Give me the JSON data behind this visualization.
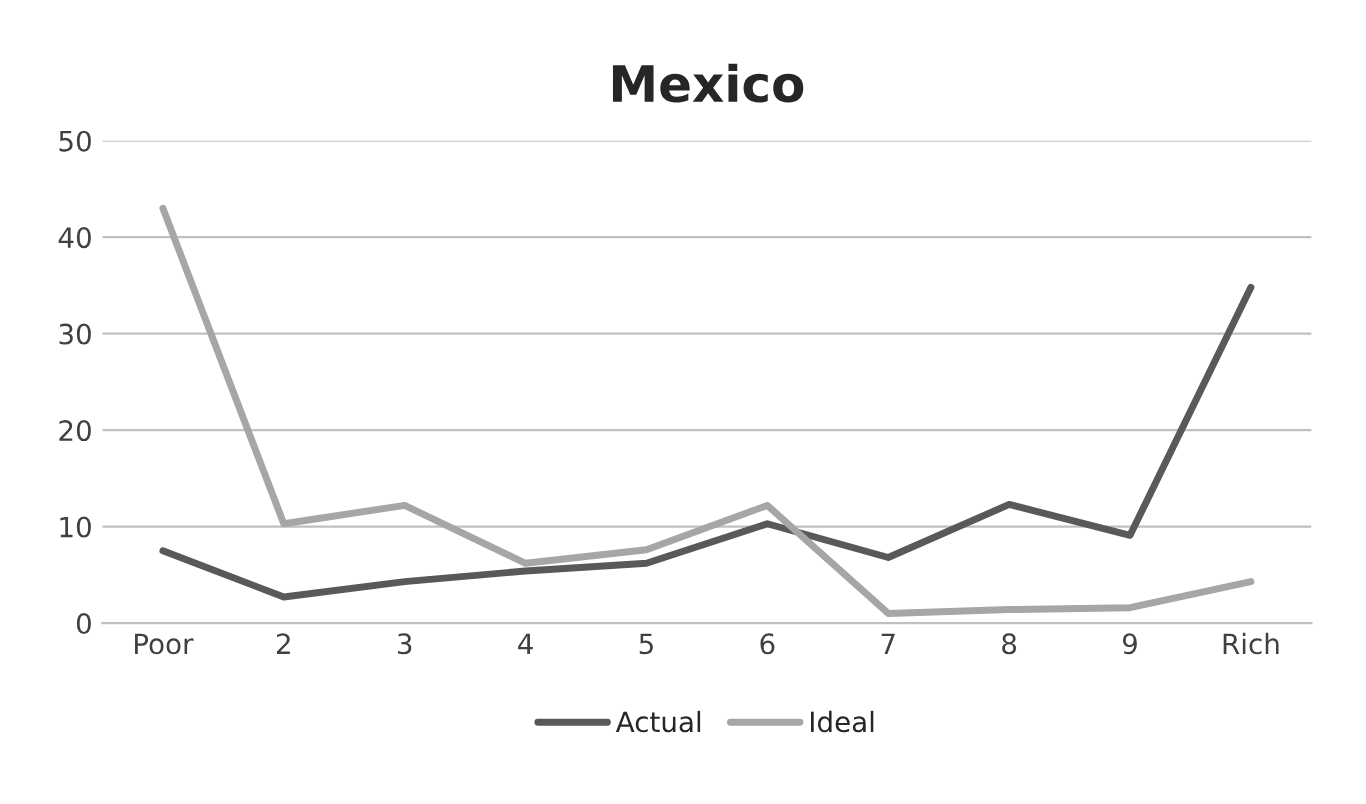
{
  "chart_data": {
    "type": "line",
    "title": "Mexico",
    "categories": [
      "Poor",
      "2",
      "3",
      "4",
      "5",
      "6",
      "7",
      "8",
      "9",
      "Rich"
    ],
    "series": [
      {
        "name": "Actual",
        "color": "#595959",
        "values": [
          7.5,
          2.7,
          4.3,
          5.4,
          6.2,
          10.3,
          6.8,
          12.3,
          9.1,
          34.8
        ]
      },
      {
        "name": "Ideal",
        "color": "#a6a6a6",
        "values": [
          43,
          10.3,
          12.2,
          6.2,
          7.6,
          12.2,
          1.0,
          1.4,
          1.6,
          4.3
        ]
      }
    ],
    "ylim": [
      0,
      50
    ],
    "yticks": [
      0,
      10,
      20,
      30,
      40,
      50
    ],
    "grid": "y",
    "legend": "bottom",
    "marker": "none",
    "line_style": "solid"
  }
}
